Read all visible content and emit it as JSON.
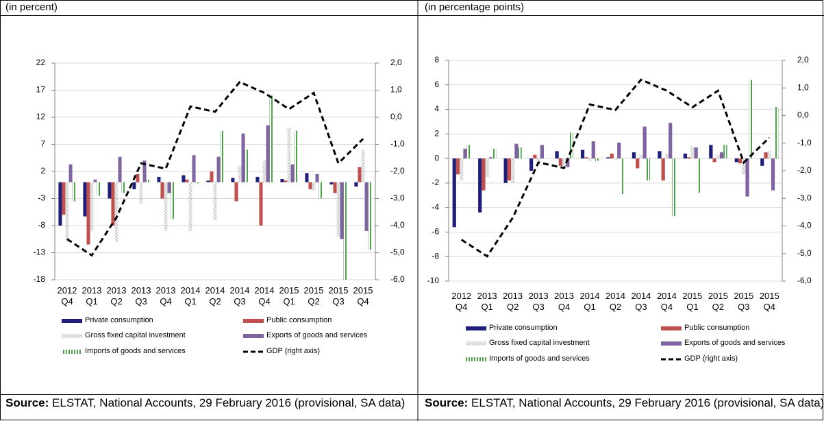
{
  "chart_data": [
    {
      "type": "bar",
      "subtitle": "(in percent)",
      "categories": [
        "2012 Q4",
        "2013 Q1",
        "2013 Q2",
        "2013 Q3",
        "2013 Q4",
        "2014 Q1",
        "2014 Q2",
        "2014 Q3",
        "2014 Q4",
        "2015 Q1",
        "2015 Q2",
        "2015 Q3",
        "2015 Q4"
      ],
      "series": [
        {
          "name": "Private consumption",
          "color": "#1f1f7a",
          "values": [
            -8,
            -6.3,
            -3,
            -1.3,
            1.0,
            1.3,
            0.3,
            0.8,
            1.0,
            0.6,
            1.7,
            -0.4,
            -0.8
          ]
        },
        {
          "name": "Public consumption",
          "color": "#c0504d",
          "values": [
            -6,
            -11.5,
            -8,
            1.5,
            -3,
            0.5,
            2,
            -3.5,
            -8,
            0.3,
            -1.3,
            -2,
            2.8
          ]
        },
        {
          "name": "Gross fixed capital investment",
          "color": "#a6a6a6",
          "pattern": "hatch",
          "values": [
            -11,
            -9,
            -11,
            -4,
            -9,
            -9,
            -7,
            3,
            4,
            10,
            -1.5,
            -10,
            6
          ]
        },
        {
          "name": "Exports of goods and services",
          "color": "#8064a2",
          "values": [
            3.3,
            0.5,
            4.7,
            4,
            -2,
            5,
            4.7,
            9,
            10.5,
            3.3,
            1.5,
            -10.5,
            -9
          ]
        },
        {
          "name": "Imports of goods and services",
          "color": "#4ea24e",
          "pattern": "stripes",
          "values": [
            -3.5,
            -2.5,
            -2,
            0.5,
            -6.8,
            -0.2,
            9.5,
            6,
            16,
            9.5,
            -3,
            -18,
            -12.5
          ]
        },
        {
          "name": "GDP (right axis)",
          "color": "#000000",
          "type": "line",
          "dash": true,
          "axis": "y2",
          "values": [
            -4.5,
            -5.1,
            -3.7,
            -1.7,
            -1.9,
            0.4,
            0.2,
            1.3,
            0.9,
            0.3,
            0.9,
            -1.7,
            -0.8
          ]
        }
      ],
      "ylim": [
        -18,
        22
      ],
      "yticks": [
        -18,
        -13,
        -8,
        -3,
        2,
        7,
        12,
        17,
        22
      ],
      "y2lim": [
        -6,
        2
      ],
      "y2ticks": [
        {
          "value": -6,
          "label": "-6,0"
        },
        {
          "value": -5,
          "label": "-5,0"
        },
        {
          "value": -4,
          "label": "-4,0"
        },
        {
          "value": -3,
          "label": "-3,0"
        },
        {
          "value": -2,
          "label": "-2,0"
        },
        {
          "value": -1,
          "label": "-1,0"
        },
        {
          "value": 0,
          "label": "0,0"
        },
        {
          "value": 1,
          "label": "1,0"
        },
        {
          "value": 2,
          "label": "2,0"
        }
      ],
      "grid": true,
      "source_label": "Source:",
      "source": "ELSTAT, National Accounts, 29 February 2016 (provisional, SA data)"
    },
    {
      "type": "bar",
      "subtitle": "(in percentage points)",
      "categories": [
        "2012 Q4",
        "2013 Q1",
        "2013 Q2",
        "2013 Q3",
        "2013 Q4",
        "2014 Q1",
        "2014 Q2",
        "2014 Q3",
        "2014 Q4",
        "2015 Q1",
        "2015 Q2",
        "2015 Q3",
        "2015 Q4"
      ],
      "series": [
        {
          "name": "Private consumption",
          "color": "#1f1f7a",
          "values": [
            -5.6,
            -4.4,
            -2,
            -1,
            0.6,
            0.7,
            0.1,
            0.5,
            0.6,
            0.4,
            1.1,
            -0.3,
            -0.6
          ]
        },
        {
          "name": "Public consumption",
          "color": "#c0504d",
          "values": [
            -1.3,
            -2.6,
            -1.8,
            0.3,
            -0.6,
            0.1,
            0.4,
            -0.8,
            -1.8,
            0.1,
            -0.3,
            -0.4,
            0.5
          ]
        },
        {
          "name": "Gross fixed capital investment",
          "color": "#a6a6a6",
          "pattern": "hatch",
          "values": [
            -1.8,
            -1.5,
            -2.0,
            -0.6,
            -0.6,
            -0.2,
            -0.1,
            0.3,
            0.4,
            1.0,
            0.3,
            -1.3,
            0.6
          ]
        },
        {
          "name": "Exports of goods and services",
          "color": "#8064a2",
          "values": [
            0.8,
            0.1,
            1.2,
            1.1,
            -0.7,
            1.4,
            1.3,
            2.6,
            2.9,
            0.9,
            0.5,
            -3.1,
            -2.6
          ]
        },
        {
          "name": "Imports of goods and services",
          "color": "#4ea24e",
          "pattern": "stripes",
          "values": [
            1.1,
            0.8,
            0.9,
            0,
            2.1,
            -0.2,
            -2.9,
            -1.8,
            -4.7,
            -2.8,
            1.1,
            6.4,
            4.2
          ]
        },
        {
          "name": "GDP (right axis)",
          "color": "#000000",
          "type": "line",
          "dash": true,
          "axis": "y2",
          "values": [
            -4.5,
            -5.1,
            -3.7,
            -1.7,
            -1.9,
            0.4,
            0.2,
            1.3,
            0.9,
            0.3,
            0.9,
            -1.7,
            -0.8
          ]
        }
      ],
      "ylim": [
        -10,
        8
      ],
      "yticks": [
        -10,
        -8,
        -6,
        -4,
        -2,
        0,
        2,
        4,
        6,
        8
      ],
      "y2lim": [
        -6,
        2
      ],
      "y2ticks": [
        {
          "value": -6,
          "label": "-6,0"
        },
        {
          "value": -5,
          "label": "-5,0"
        },
        {
          "value": -4,
          "label": "-4,0"
        },
        {
          "value": -3,
          "label": "-3,0"
        },
        {
          "value": -2,
          "label": "-2,0"
        },
        {
          "value": -1,
          "label": "-1,0"
        },
        {
          "value": 0,
          "label": "0,0"
        },
        {
          "value": 1,
          "label": "1,0"
        },
        {
          "value": 2,
          "label": "2,0"
        }
      ],
      "grid": true,
      "source_label": "Source:",
      "source": "ELSTAT, National Accounts, 29 February 2016 (provisional, SA data)"
    }
  ]
}
